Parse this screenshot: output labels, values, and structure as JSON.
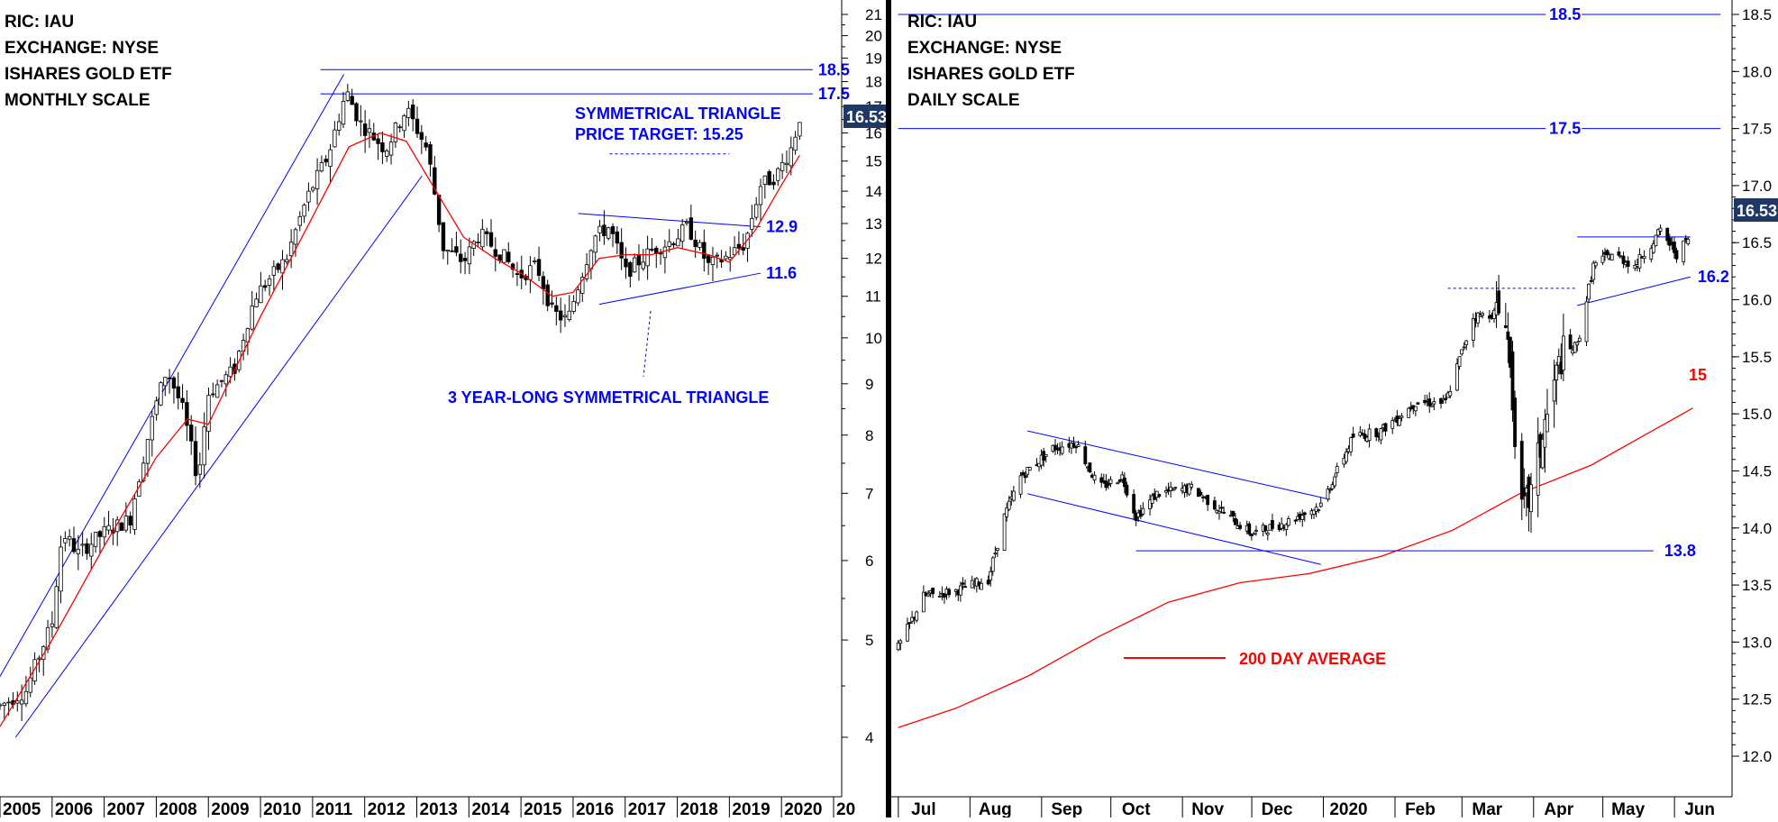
{
  "colors": {
    "candle": "#000000",
    "trendline": "#0000ff",
    "moving_average": "#ff0000",
    "price_badge_bg": "#1f3864",
    "price_badge_text": "#ffffff",
    "annotation": "#0000ff",
    "divider": "#000000"
  },
  "left_panel": {
    "header": [
      "RIC: IAU",
      "EXCHANGE: NYSE",
      "ISHARES GOLD ETF",
      "MONTHLY SCALE"
    ],
    "price_badge": "16.53"
  },
  "right_panel": {
    "header": [
      "RIC: IAU",
      "EXCHANGE: NYSE",
      "ISHARES GOLD ETF",
      "DAILY SCALE"
    ],
    "price_badge": "16.53"
  },
  "chart_data": [
    {
      "type": "candlestick",
      "scale": "log",
      "interval": "monthly",
      "ylim": [
        3.6,
        21.5
      ],
      "y_ticks": [
        4,
        5,
        6,
        7,
        8,
        9,
        10,
        11,
        12,
        13,
        14,
        15,
        16,
        17,
        18,
        19,
        20,
        21
      ],
      "x_tick_labels": [
        "2005",
        "2006",
        "2007",
        "2008",
        "2009",
        "2010",
        "2011",
        "2012",
        "2013",
        "2014",
        "2015",
        "2016",
        "2017",
        "2018",
        "2019",
        "2020",
        "20"
      ],
      "x_range": [
        2005.0,
        2021.0
      ],
      "series": [
        {
          "name": "IAU monthly",
          "kind": "candles",
          "points": [
            [
              2005.0,
              4.3
            ],
            [
              2005.5,
              4.45
            ],
            [
              2006.0,
              5.2
            ],
            [
              2006.2,
              6.4
            ],
            [
              2006.5,
              6.1
            ],
            [
              2007.0,
              6.4
            ],
            [
              2007.5,
              6.6
            ],
            [
              2008.0,
              8.6
            ],
            [
              2008.2,
              9.3
            ],
            [
              2008.5,
              8.5
            ],
            [
              2008.8,
              7.2
            ],
            [
              2009.0,
              8.8
            ],
            [
              2009.5,
              9.3
            ],
            [
              2009.9,
              11.0
            ],
            [
              2010.5,
              12.0
            ],
            [
              2010.9,
              13.8
            ],
            [
              2011.3,
              15.2
            ],
            [
              2011.65,
              17.6
            ],
            [
              2011.9,
              16.4
            ],
            [
              2012.4,
              15.4
            ],
            [
              2012.8,
              16.9
            ],
            [
              2013.2,
              15.4
            ],
            [
              2013.5,
              12.3
            ],
            [
              2013.9,
              11.9
            ],
            [
              2014.2,
              12.7
            ],
            [
              2014.7,
              12.0
            ],
            [
              2014.95,
              11.5
            ],
            [
              2015.3,
              11.8
            ],
            [
              2015.6,
              10.6
            ],
            [
              2015.9,
              10.4
            ],
            [
              2016.4,
              12.6
            ],
            [
              2016.7,
              12.9
            ],
            [
              2017.0,
              11.6
            ],
            [
              2017.5,
              12.2
            ],
            [
              2017.9,
              12.5
            ],
            [
              2018.2,
              12.9
            ],
            [
              2018.6,
              11.8
            ],
            [
              2018.9,
              12.0
            ],
            [
              2019.3,
              12.4
            ],
            [
              2019.6,
              14.2
            ],
            [
              2019.9,
              14.5
            ],
            [
              2020.2,
              15.5
            ],
            [
              2020.35,
              16.6
            ]
          ]
        },
        {
          "name": "",
          "kind": "moving_average",
          "points": [
            [
              2005.0,
              4.1
            ],
            [
              2006.0,
              5.0
            ],
            [
              2007.0,
              6.2
            ],
            [
              2008.0,
              7.6
            ],
            [
              2008.6,
              8.3
            ],
            [
              2009.0,
              8.2
            ],
            [
              2010.0,
              10.5
            ],
            [
              2011.0,
              13.2
            ],
            [
              2011.7,
              15.5
            ],
            [
              2012.3,
              16.0
            ],
            [
              2012.8,
              15.7
            ],
            [
              2013.3,
              14.2
            ],
            [
              2013.9,
              12.6
            ],
            [
              2014.5,
              12.0
            ],
            [
              2015.0,
              11.6
            ],
            [
              2015.6,
              11.0
            ],
            [
              2016.0,
              11.1
            ],
            [
              2016.5,
              12.0
            ],
            [
              2017.0,
              12.1
            ],
            [
              2017.5,
              12.1
            ],
            [
              2018.0,
              12.3
            ],
            [
              2018.6,
              12.1
            ],
            [
              2019.0,
              11.9
            ],
            [
              2019.5,
              12.8
            ],
            [
              2020.0,
              14.2
            ],
            [
              2020.35,
              15.2
            ]
          ]
        }
      ],
      "trendlines": [
        {
          "label": "",
          "points": [
            [
              2005.0,
              4.6
            ],
            [
              2011.6,
              18.3
            ]
          ]
        },
        {
          "label": "",
          "points": [
            [
              2005.3,
              4.0
            ],
            [
              2013.1,
              14.5
            ]
          ]
        },
        {
          "label": "18.5",
          "points": [
            [
              2011.15,
              18.5
            ],
            [
              2020.6,
              18.5
            ]
          ]
        },
        {
          "label": "17.5",
          "points": [
            [
              2011.15,
              17.5
            ],
            [
              2020.6,
              17.5
            ]
          ]
        },
        {
          "label": "12.9",
          "points": [
            [
              2016.1,
              13.3
            ],
            [
              2019.6,
              12.9
            ]
          ]
        },
        {
          "label": "11.6",
          "points": [
            [
              2016.5,
              10.8
            ],
            [
              2019.6,
              11.6
            ]
          ]
        },
        {
          "label": "",
          "points": [
            [
              2016.7,
              15.25
            ],
            [
              2019.0,
              15.25
            ]
          ]
        }
      ],
      "annotations": [
        "SYMMETRICAL TRIANGLE",
        "PRICE TARGET: 15.25",
        "3 YEAR-LONG SYMMETRICAL TRIANGLE"
      ]
    },
    {
      "type": "candlestick",
      "scale": "linear",
      "interval": "daily",
      "ylim": [
        11.85,
        18.6
      ],
      "y_ticks": [
        12.0,
        12.5,
        13.0,
        13.5,
        14.0,
        14.5,
        15.0,
        15.5,
        16.0,
        16.5,
        17.0,
        17.5,
        18.0,
        18.5
      ],
      "x_tick_labels": [
        "Jul",
        "Aug",
        "Sep",
        "Oct",
        "Nov",
        "Dec",
        "2020",
        "Feb",
        "Mar",
        "Apr",
        "May",
        "Jun"
      ],
      "series": [
        {
          "name": "IAU daily",
          "kind": "candles",
          "points": [
            [
              "2019-06-20",
              12.95
            ],
            [
              "2019-07-01",
              13.4
            ],
            [
              "2019-07-15",
              13.45
            ],
            [
              "2019-07-29",
              13.55
            ],
            [
              "2019-08-05",
              14.1
            ],
            [
              "2019-08-12",
              14.45
            ],
            [
              "2019-08-26",
              14.7
            ],
            [
              "2019-09-05",
              14.75
            ],
            [
              "2019-09-15",
              14.35
            ],
            [
              "2019-09-25",
              14.45
            ],
            [
              "2019-10-01",
              14.1
            ],
            [
              "2019-10-10",
              14.3
            ],
            [
              "2019-10-25",
              14.35
            ],
            [
              "2019-11-07",
              14.15
            ],
            [
              "2019-11-20",
              13.95
            ],
            [
              "2019-12-05",
              14.05
            ],
            [
              "2019-12-20",
              14.2
            ],
            [
              "2020-01-03",
              14.8
            ],
            [
              "2020-01-15",
              14.85
            ],
            [
              "2020-01-30",
              15.1
            ],
            [
              "2020-02-12",
              15.1
            ],
            [
              "2020-02-24",
              15.85
            ],
            [
              "2020-03-09",
              15.9
            ],
            [
              "2020-03-16",
              14.1
            ],
            [
              "2020-03-20",
              14.3
            ],
            [
              "2020-03-26",
              14.9
            ],
            [
              "2020-04-02",
              15.5
            ],
            [
              "2020-04-09",
              15.6
            ],
            [
              "2020-04-16",
              16.3
            ],
            [
              "2020-04-24",
              16.4
            ],
            [
              "2020-05-04",
              16.3
            ],
            [
              "2020-05-15",
              16.6
            ],
            [
              "2020-05-22",
              16.4
            ],
            [
              "2020-05-27",
              16.53
            ]
          ]
        },
        {
          "name": "200 DAY AVERAGE",
          "kind": "moving_average",
          "points": [
            [
              "2019-06-20",
              12.25
            ],
            [
              "2019-07-15",
              12.42
            ],
            [
              "2019-08-15",
              12.7
            ],
            [
              "2019-09-15",
              13.05
            ],
            [
              "2019-10-15",
              13.35
            ],
            [
              "2019-11-15",
              13.52
            ],
            [
              "2019-12-15",
              13.6
            ],
            [
              "2020-01-15",
              13.75
            ],
            [
              "2020-02-15",
              13.98
            ],
            [
              "2020-03-15",
              14.3
            ],
            [
              "2020-04-15",
              14.55
            ],
            [
              "2020-05-29",
              15.05
            ]
          ]
        }
      ],
      "trendlines": [
        {
          "label": "18.5",
          "points": [
            [
              "2019-06-20",
              18.5
            ],
            [
              "2020-06-10",
              18.5
            ]
          ]
        },
        {
          "label": "17.5",
          "points": [
            [
              "2019-06-20",
              17.5
            ],
            [
              "2020-06-10",
              17.5
            ]
          ]
        },
        {
          "label": "13.8",
          "points": [
            [
              "2019-10-01",
              13.8
            ],
            [
              "2020-05-12",
              13.8
            ]
          ]
        },
        {
          "label": "16.2",
          "points": [
            [
              "2020-04-09",
              15.95
            ],
            [
              "2020-05-28",
              16.2
            ]
          ]
        },
        {
          "label": "",
          "points": [
            [
              "2020-04-09",
              16.55
            ],
            [
              "2020-05-28",
              16.55
            ]
          ]
        },
        {
          "label": "",
          "points": [
            [
              "2020-02-13",
              16.1
            ],
            [
              "2020-04-09",
              16.1
            ]
          ]
        },
        {
          "label": "",
          "points": [
            [
              "2019-08-15",
              14.85
            ],
            [
              "2019-12-24",
              14.25
            ]
          ]
        },
        {
          "label": "",
          "points": [
            [
              "2019-08-15",
              14.3
            ],
            [
              "2019-12-20",
              13.68
            ]
          ]
        }
      ],
      "ma_label": "15",
      "legend": "200 DAY AVERAGE"
    }
  ]
}
